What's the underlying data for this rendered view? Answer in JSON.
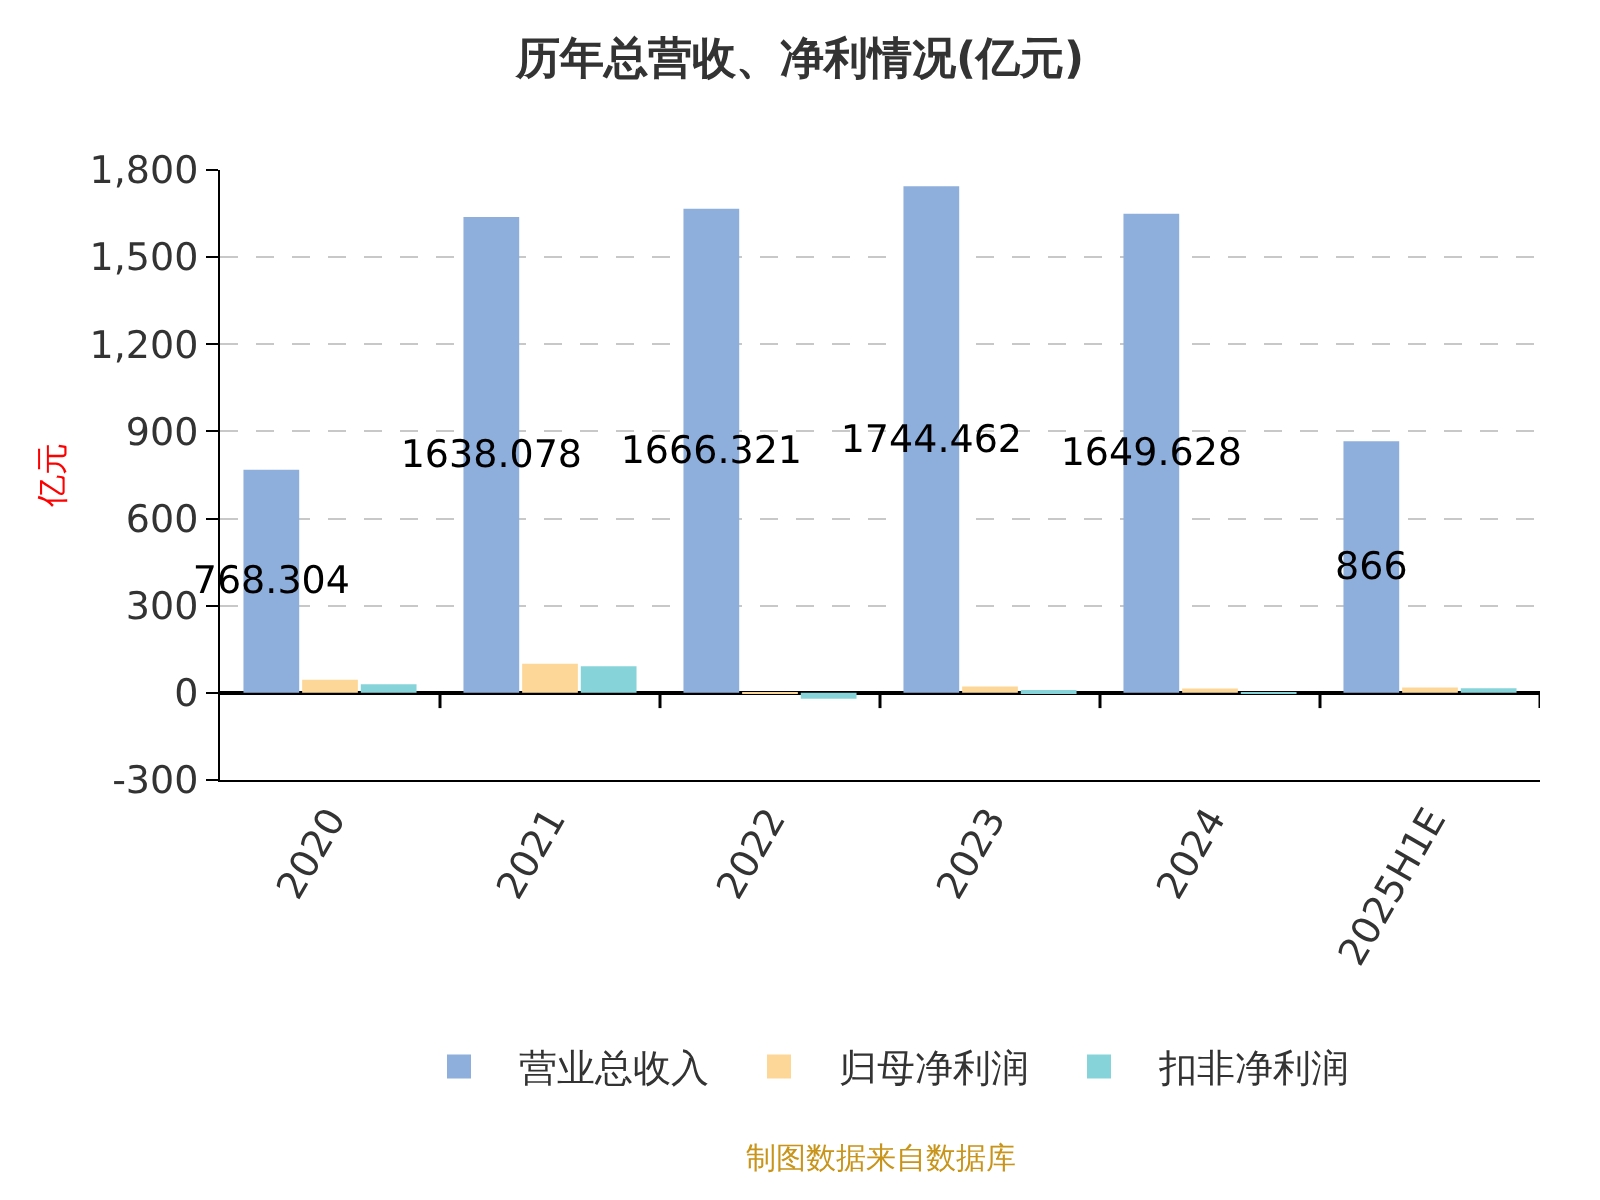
{
  "chart_data": {
    "type": "bar",
    "title": "历年总营收、净利情况(亿元)",
    "ylabel": "亿元",
    "categories": [
      "2020",
      "2021",
      "2022",
      "2023",
      "2024",
      "2025H1E"
    ],
    "series": [
      {
        "name": "营业总收入",
        "color": "#8eaedb",
        "values": [
          768.304,
          1638.078,
          1666.321,
          1744.462,
          1649.628,
          866
        ],
        "value_labels": [
          "768.304",
          "1638.078",
          "1666.321",
          "1744.462",
          "1649.628",
          "866"
        ]
      },
      {
        "name": "归母净利润",
        "color": "#fdd797",
        "values": [
          45,
          100,
          1,
          22,
          15,
          18
        ]
      },
      {
        "name": "扣非净利润",
        "color": "#86d4d9",
        "values": [
          30,
          92,
          -20,
          10,
          1,
          16
        ]
      }
    ],
    "ylim": [
      -300,
      1800
    ],
    "yticks": [
      -300,
      0,
      300,
      600,
      900,
      {
        "value": 1200,
        "label": "1,200"
      },
      {
        "value": 1500,
        "label": "1,500"
      },
      {
        "value": 1800,
        "label": "1,800"
      }
    ],
    "grid": "y",
    "legend": "bottom",
    "annotations": [
      "制图数据来自数据库"
    ]
  }
}
